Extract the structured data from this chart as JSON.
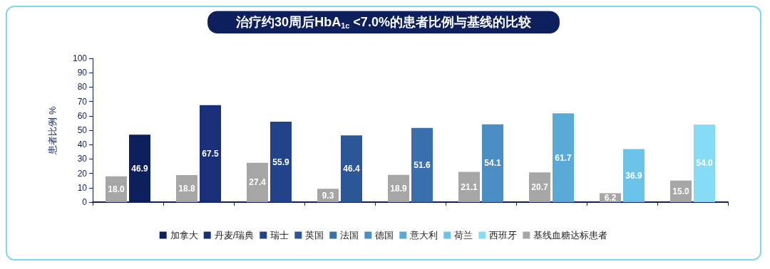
{
  "chart_data": {
    "type": "bar",
    "title": "治疗约30周后HbA$_{1c}$ <7.0%的患者比例与基线的比较",
    "ylabel": "患者比例 %",
    "categories": [
      null,
      null,
      null,
      null,
      null,
      null,
      null,
      null,
      null
    ],
    "series": [
      {
        "name": "基线血糖达标患者",
        "color": "#a6a6a6",
        "values": [
          18.0,
          18.8,
          27.4,
          9.3,
          18.9,
          21.1,
          20.7,
          6.2,
          15.0
        ],
        "value_labels": [
          "18.0",
          "18.8",
          "27.4",
          "9.3",
          "18.9",
          "21.1",
          "20.7",
          "6.2",
          "15.0"
        ]
      },
      {
        "name": "加拿大",
        "color": "#0d1f5c",
        "values": [
          46.9,
          null,
          null,
          null,
          null,
          null,
          null,
          null,
          null
        ]
      },
      {
        "name": "丹麦/瑞典",
        "color": "#1a2f7a",
        "values": [
          null,
          67.5,
          null,
          null,
          null,
          null,
          null,
          null,
          null
        ]
      },
      {
        "name": "瑞士",
        "color": "#22428a",
        "values": [
          null,
          null,
          55.9,
          null,
          null,
          null,
          null,
          null,
          null
        ]
      },
      {
        "name": "英国",
        "color": "#2b5697",
        "values": [
          null,
          null,
          null,
          46.4,
          null,
          null,
          null,
          null,
          null
        ]
      },
      {
        "name": "法国",
        "color": "#3a6fae",
        "values": [
          null,
          null,
          null,
          null,
          51.6,
          null,
          null,
          null,
          null
        ]
      },
      {
        "name": "德国",
        "color": "#4a8fc4",
        "values": [
          null,
          null,
          null,
          null,
          null,
          54.1,
          null,
          null,
          null
        ]
      },
      {
        "name": "意大利",
        "color": "#5aaad8",
        "values": [
          null,
          null,
          null,
          null,
          null,
          null,
          61.7,
          null,
          null
        ]
      },
      {
        "name": "荷兰",
        "color": "#6cc3ea",
        "values": [
          null,
          null,
          null,
          null,
          null,
          null,
          null,
          36.9,
          null
        ]
      },
      {
        "name": "西班牙",
        "color": "#85dcf5",
        "values": [
          null,
          null,
          null,
          null,
          null,
          null,
          null,
          null,
          54.0
        ],
        "value_labels": [
          null,
          null,
          null,
          null,
          null,
          null,
          null,
          null,
          "54.0"
        ]
      }
    ],
    "ylim": [
      0,
      100
    ],
    "yticks": [
      0,
      10,
      20,
      30,
      40,
      50,
      60,
      70,
      80,
      90,
      100
    ],
    "grid": false,
    "legend": "bottom",
    "data_labels": true
  }
}
